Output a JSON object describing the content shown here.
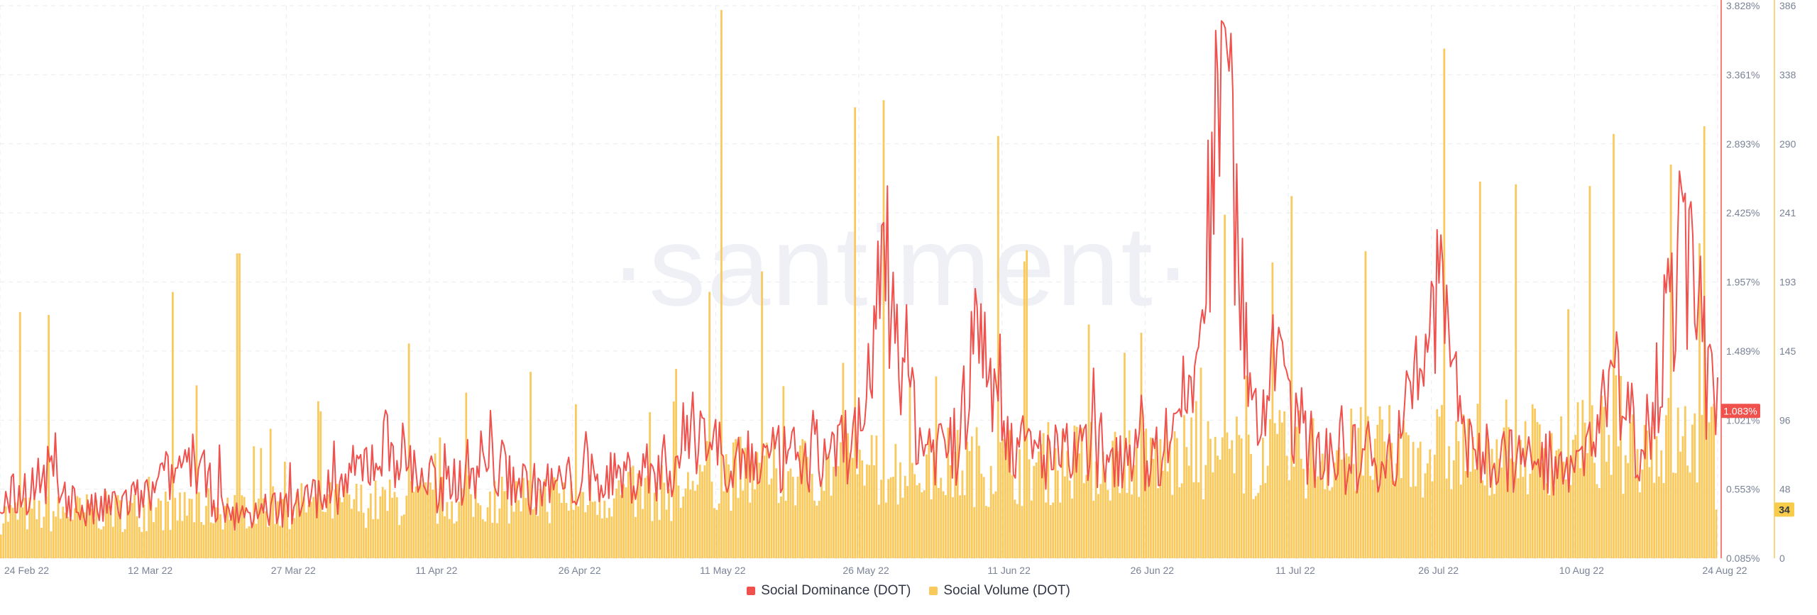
{
  "colors": {
    "dominance": "#f0514d",
    "volume": "#f9c95c",
    "grid": "#e9ebf0",
    "axis_text": "#7a8296",
    "badge_dominance_bg": "#f0514d",
    "badge_volume_bg": "#f7cc4a"
  },
  "watermark": "·santiment·",
  "chart_data": {
    "type": "bar+line",
    "x_range": [
      "2022-02-24",
      "2022-08-24"
    ],
    "x_ticks": [
      "24 Feb 22",
      "12 Mar 22",
      "27 Mar 22",
      "11 Apr 22",
      "26 Apr 22",
      "11 May 22",
      "26 May 22",
      "11 Jun 22",
      "26 Jun 22",
      "11 Jul 22",
      "26 Jul 22",
      "10 Aug 22",
      "24 Aug 22"
    ],
    "y_left_ticks": [
      "3.828%",
      "3.361%",
      "2.893%",
      "2.425%",
      "1.957%",
      "1.489%",
      "1.021%",
      "0.553%",
      "0.085%"
    ],
    "y_left_range": [
      0.085,
      3.828
    ],
    "y_right_ticks": [
      "386",
      "338",
      "290",
      "241",
      "193",
      "145",
      "96",
      "48",
      "0"
    ],
    "y_right_range": [
      0,
      386
    ],
    "grid": true,
    "legend_position": "bottom-center",
    "series": [
      {
        "name": "Social Dominance (DOT)",
        "type": "line",
        "axis": "left",
        "unit": "%",
        "last_value_label": "1.083%",
        "points": [
          [
            "2022-02-24",
            0.48
          ],
          [
            "2022-03-01",
            0.7
          ],
          [
            "2022-03-05",
            0.42
          ],
          [
            "2022-03-12",
            0.55
          ],
          [
            "2022-03-16",
            0.85
          ],
          [
            "2022-03-20",
            0.38
          ],
          [
            "2022-03-27",
            0.5
          ],
          [
            "2022-04-01",
            0.62
          ],
          [
            "2022-04-06",
            0.95
          ],
          [
            "2022-04-11",
            0.58
          ],
          [
            "2022-04-16",
            0.82
          ],
          [
            "2022-04-21",
            0.6
          ],
          [
            "2022-04-26",
            0.66
          ],
          [
            "2022-05-01",
            0.7
          ],
          [
            "2022-05-06",
            0.78
          ],
          [
            "2022-05-09",
            1.1
          ],
          [
            "2022-05-11",
            0.86
          ],
          [
            "2022-05-16",
            0.8
          ],
          [
            "2022-05-21",
            0.84
          ],
          [
            "2022-05-26",
            1.0
          ],
          [
            "2022-05-28",
            2.4
          ],
          [
            "2022-06-01",
            0.95
          ],
          [
            "2022-06-05",
            0.9
          ],
          [
            "2022-06-07",
            1.8
          ],
          [
            "2022-06-11",
            0.9
          ],
          [
            "2022-06-16",
            0.82
          ],
          [
            "2022-06-21",
            0.9
          ],
          [
            "2022-06-26",
            0.86
          ],
          [
            "2022-06-30",
            1.4
          ],
          [
            "2022-07-03",
            3.78
          ],
          [
            "2022-07-06",
            1.0
          ],
          [
            "2022-07-09",
            1.6
          ],
          [
            "2022-07-11",
            0.92
          ],
          [
            "2022-07-16",
            0.82
          ],
          [
            "2022-07-21",
            0.86
          ],
          [
            "2022-07-26",
            2.1
          ],
          [
            "2022-07-28",
            0.95
          ],
          [
            "2022-08-01",
            0.82
          ],
          [
            "2022-08-05",
            0.8
          ],
          [
            "2022-08-10",
            0.86
          ],
          [
            "2022-08-13",
            1.4
          ],
          [
            "2022-08-16",
            0.9
          ],
          [
            "2022-08-19",
            1.9
          ],
          [
            "2022-08-21",
            2.45
          ],
          [
            "2022-08-23",
            1.3
          ],
          [
            "2022-08-24",
            1.083
          ]
        ]
      },
      {
        "name": "Social Volume (DOT)",
        "type": "bar",
        "axis": "right",
        "last_value_label": "34",
        "spikes": [
          [
            "2022-02-26",
            172
          ],
          [
            "2022-03-01",
            170
          ],
          [
            "2022-03-14",
            186
          ],
          [
            "2022-03-21",
            213
          ],
          [
            "2022-04-08",
            150
          ],
          [
            "2022-05-11",
            383
          ],
          [
            "2022-05-25",
            315
          ],
          [
            "2022-05-28",
            320
          ],
          [
            "2022-06-09",
            295
          ],
          [
            "2022-07-03",
            240
          ],
          [
            "2022-07-10",
            253
          ],
          [
            "2022-07-26",
            356
          ],
          [
            "2022-08-19",
            275
          ],
          [
            "2022-08-22",
            220
          ]
        ]
      }
    ]
  },
  "legend": {
    "dominance_label": "Social Dominance (DOT)",
    "volume_label": "Social Volume (DOT)"
  }
}
